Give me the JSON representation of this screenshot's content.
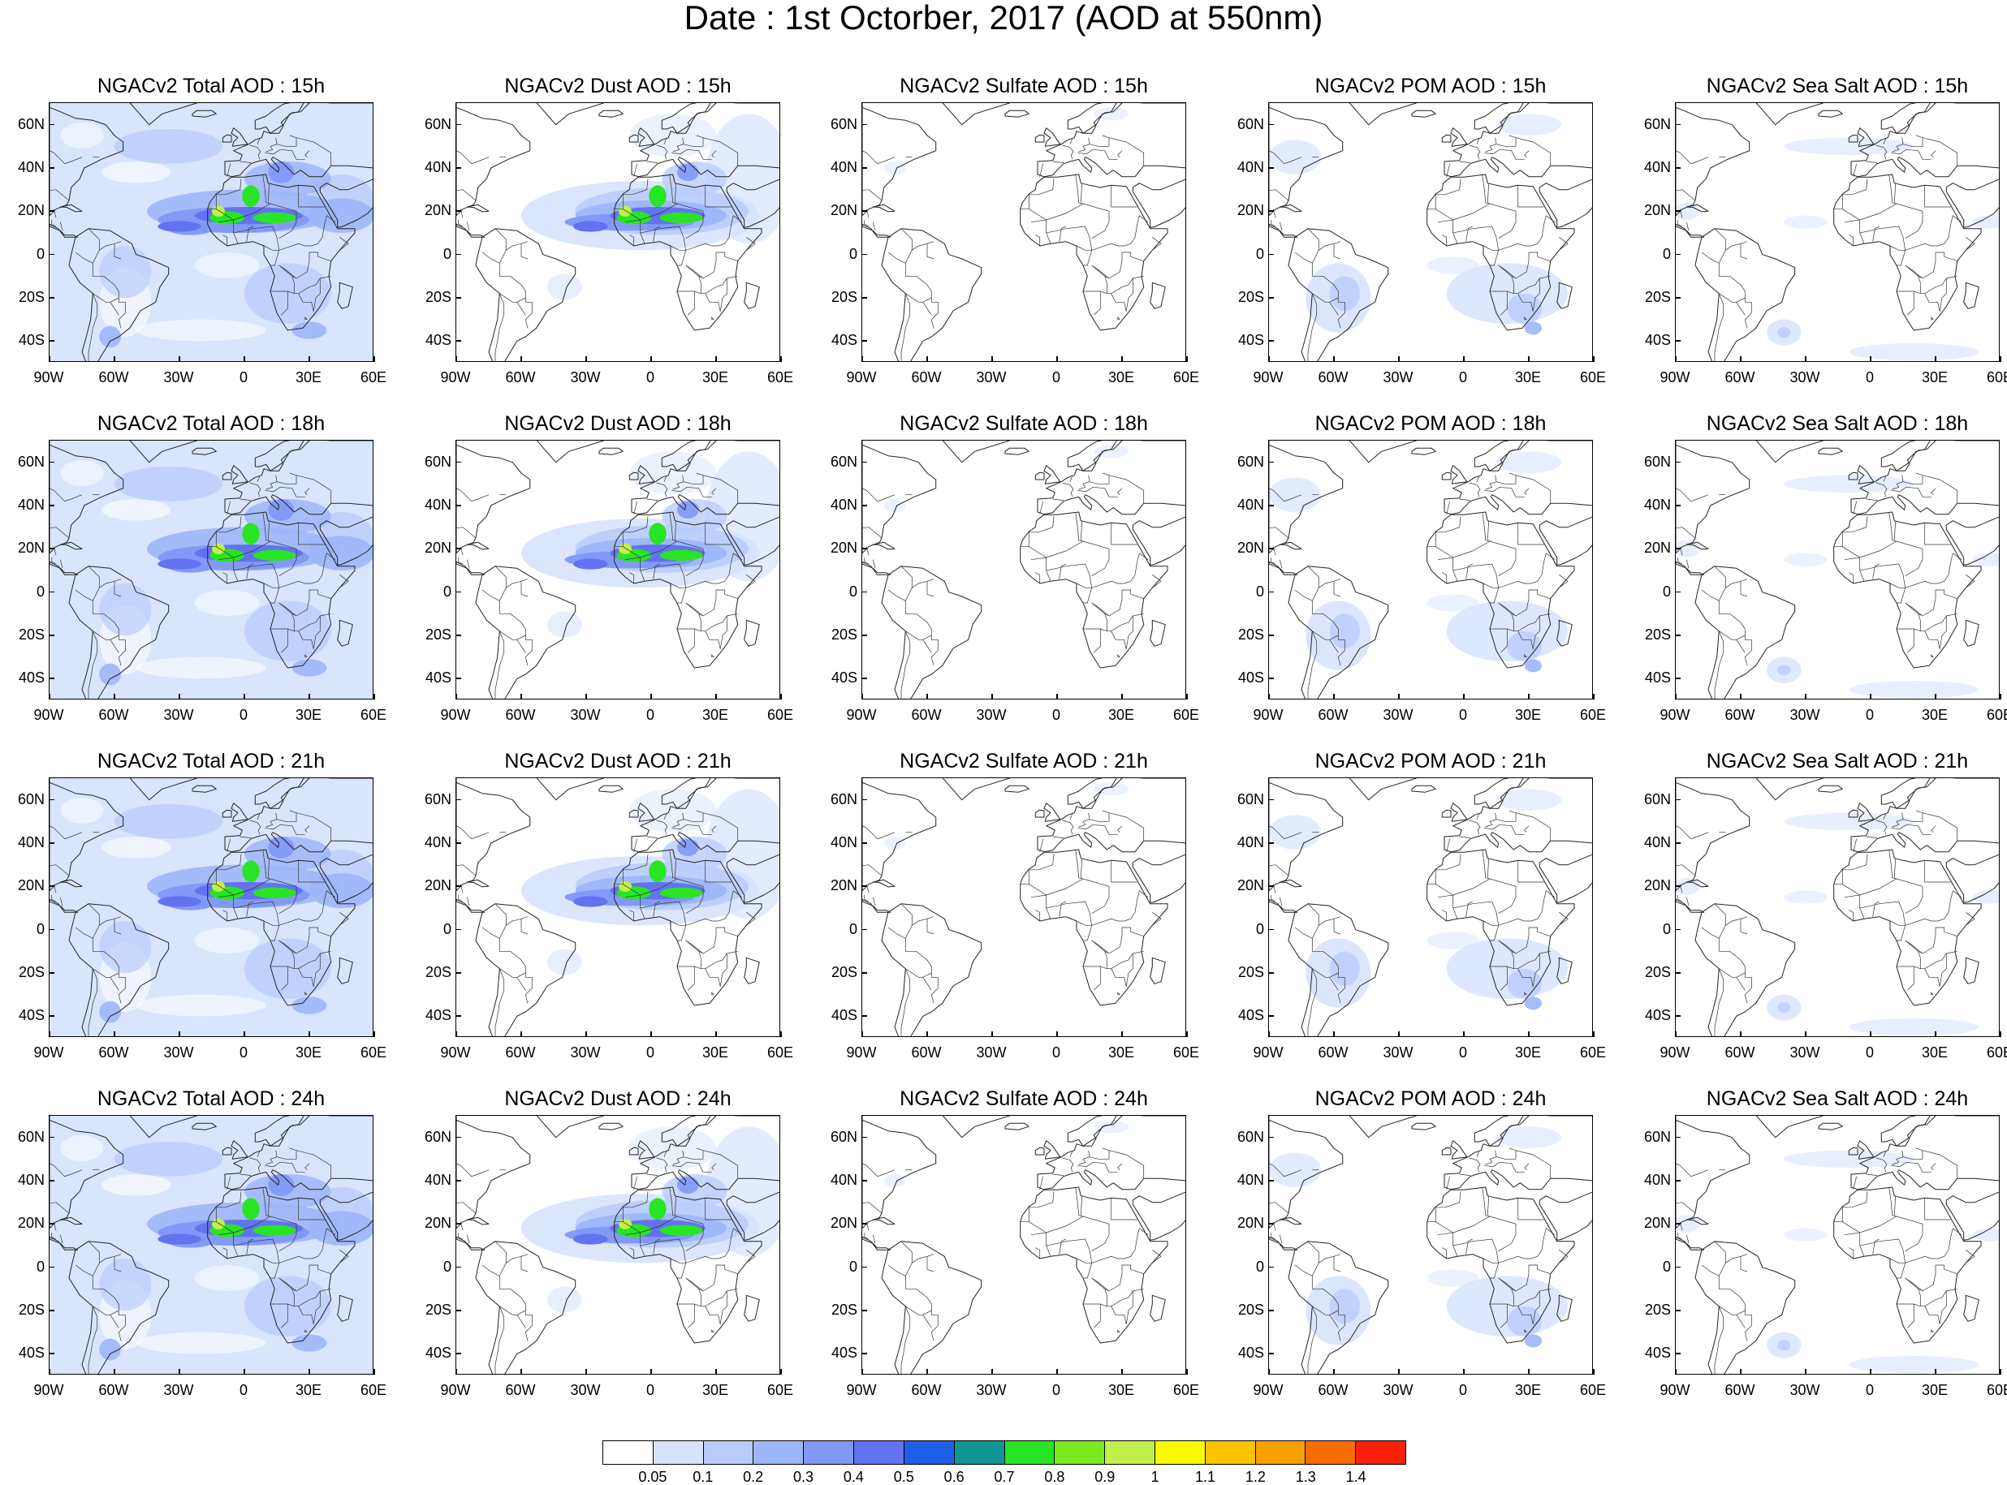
{
  "title": "Date : 1st Octorber, 2017 (AOD at 550nm)",
  "latitude_labels": [
    "60N",
    "40N",
    "20N",
    "0",
    "20S",
    "40S"
  ],
  "longitude_labels": [
    "90W",
    "60W",
    "30W",
    "0",
    "30E",
    "60E"
  ],
  "panels": [
    {
      "title": "NGACv2 Total AOD : 15h",
      "species": "total"
    },
    {
      "title": "NGACv2 Dust AOD : 15h",
      "species": "dust"
    },
    {
      "title": "NGACv2 Sulfate AOD : 15h",
      "species": "sulfate"
    },
    {
      "title": "NGACv2 POM AOD : 15h",
      "species": "pom"
    },
    {
      "title": "NGACv2 Sea Salt AOD : 15h",
      "species": "seasalt"
    },
    {
      "title": "NGACv2 Total AOD : 18h",
      "species": "total"
    },
    {
      "title": "NGACv2 Dust AOD : 18h",
      "species": "dust"
    },
    {
      "title": "NGACv2 Sulfate AOD : 18h",
      "species": "sulfate"
    },
    {
      "title": "NGACv2 POM AOD : 18h",
      "species": "pom"
    },
    {
      "title": "NGACv2 Sea Salt AOD : 18h",
      "species": "seasalt"
    },
    {
      "title": "NGACv2 Total AOD : 21h",
      "species": "total"
    },
    {
      "title": "NGACv2 Dust AOD : 21h",
      "species": "dust"
    },
    {
      "title": "NGACv2 Sulfate AOD : 21h",
      "species": "sulfate"
    },
    {
      "title": "NGACv2 POM AOD : 21h",
      "species": "pom"
    },
    {
      "title": "NGACv2 Sea Salt AOD : 21h",
      "species": "seasalt"
    },
    {
      "title": "NGACv2 Total AOD : 24h",
      "species": "total"
    },
    {
      "title": "NGACv2 Dust AOD : 24h",
      "species": "dust"
    },
    {
      "title": "NGACv2 Sulfate AOD : 24h",
      "species": "sulfate"
    },
    {
      "title": "NGACv2 POM AOD : 24h",
      "species": "pom"
    },
    {
      "title": "NGACv2 Sea Salt  AOD : 24h",
      "species": "seasalt"
    }
  ],
  "colorbar": {
    "labels": [
      "0.05",
      "0.1",
      "0.2",
      "0.3",
      "0.4",
      "0.5",
      "0.6",
      "0.7",
      "0.8",
      "0.9",
      "1",
      "1.1",
      "1.2",
      "1.3",
      "1.4"
    ],
    "colors": [
      "#ffffff",
      "#d7e3fd",
      "#b9cdfb",
      "#9db6f9",
      "#8198f6",
      "#6372f0",
      "#1f5fe8",
      "#119793",
      "#28e523",
      "#7ce820",
      "#c1f04a",
      "#fbfb00",
      "#fbc400",
      "#f9a000",
      "#f76d00",
      "#f91f0a"
    ]
  }
}
